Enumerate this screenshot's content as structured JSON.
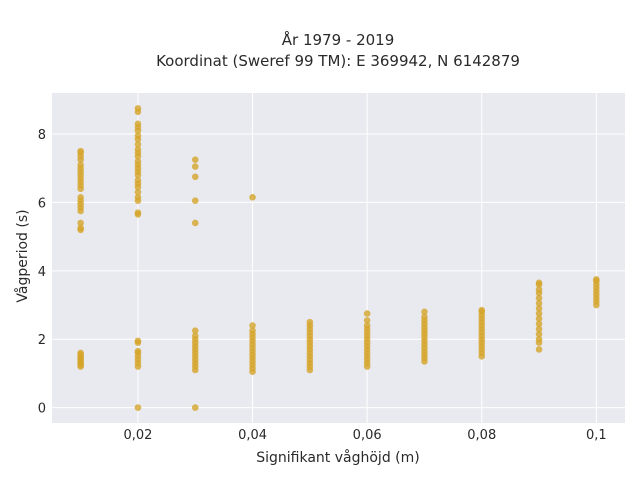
{
  "chart_data": {
    "type": "scatter",
    "title_line1": "År 1979 - 2019",
    "title_line2": "Koordinat (Sweref 99 TM): E 369942, N 6142879",
    "xlabel": "Signifikant våghöjd (m)",
    "ylabel": "Vågperiod (s)",
    "xlim": [
      0.005,
      0.105
    ],
    "ylim": [
      -0.45,
      9.2
    ],
    "x_ticks": [
      {
        "value": 0.02,
        "label": "0,02"
      },
      {
        "value": 0.04,
        "label": "0,04"
      },
      {
        "value": 0.06,
        "label": "0,06"
      },
      {
        "value": 0.08,
        "label": "0,08"
      },
      {
        "value": 0.1,
        "label": "0,1"
      }
    ],
    "y_ticks": [
      {
        "value": 0,
        "label": "0"
      },
      {
        "value": 2,
        "label": "2"
      },
      {
        "value": 4,
        "label": "4"
      },
      {
        "value": 6,
        "label": "6"
      },
      {
        "value": 8,
        "label": "8"
      }
    ],
    "grid": true,
    "colors": {
      "plot_background": "#e9e9f0",
      "grid": "#ffffff",
      "marker": "#d4a52a"
    },
    "series": [
      {
        "x": 0.01,
        "y": [
          1.2,
          1.25,
          1.3,
          1.35,
          1.4,
          1.45,
          1.5,
          1.55,
          1.6,
          5.2,
          5.25,
          5.4,
          5.75,
          5.85,
          5.95,
          6.05,
          6.15,
          6.4,
          6.5,
          6.6,
          6.7,
          6.8,
          6.9,
          7.0,
          7.1,
          7.25,
          7.35,
          7.45,
          7.5
        ]
      },
      {
        "x": 0.02,
        "y": [
          0.0,
          1.2,
          1.3,
          1.4,
          1.5,
          1.6,
          1.65,
          1.9,
          1.95,
          5.65,
          5.7,
          6.05,
          6.15,
          6.3,
          6.45,
          6.55,
          6.65,
          6.8,
          6.9,
          7.0,
          7.1,
          7.2,
          7.35,
          7.45,
          7.55,
          7.7,
          7.85,
          7.95,
          8.1,
          8.2,
          8.3,
          8.65,
          8.75
        ]
      },
      {
        "x": 0.03,
        "y": [
          0.0,
          1.1,
          1.2,
          1.3,
          1.4,
          1.5,
          1.6,
          1.7,
          1.8,
          1.9,
          2.0,
          2.1,
          2.25,
          5.4,
          6.05,
          6.75,
          7.05,
          7.25
        ]
      },
      {
        "x": 0.04,
        "y": [
          1.05,
          1.15,
          1.25,
          1.35,
          1.45,
          1.55,
          1.65,
          1.75,
          1.85,
          1.95,
          2.05,
          2.15,
          2.25,
          2.4,
          6.15
        ]
      },
      {
        "x": 0.05,
        "y": [
          1.1,
          1.2,
          1.3,
          1.4,
          1.5,
          1.6,
          1.7,
          1.8,
          1.9,
          2.0,
          2.1,
          2.2,
          2.3,
          2.4,
          2.5
        ]
      },
      {
        "x": 0.06,
        "y": [
          1.2,
          1.3,
          1.4,
          1.5,
          1.6,
          1.7,
          1.8,
          1.9,
          2.0,
          2.1,
          2.2,
          2.3,
          2.4,
          2.55,
          2.75
        ]
      },
      {
        "x": 0.07,
        "y": [
          1.35,
          1.45,
          1.55,
          1.65,
          1.75,
          1.85,
          1.95,
          2.05,
          2.15,
          2.25,
          2.35,
          2.45,
          2.55,
          2.65,
          2.8
        ]
      },
      {
        "x": 0.08,
        "y": [
          1.5,
          1.6,
          1.7,
          1.8,
          1.9,
          2.0,
          2.1,
          2.2,
          2.3,
          2.4,
          2.5,
          2.6,
          2.7,
          2.8,
          2.85
        ]
      },
      {
        "x": 0.09,
        "y": [
          1.7,
          1.9,
          2.0,
          2.15,
          2.3,
          2.45,
          2.6,
          2.75,
          2.9,
          3.05,
          3.2,
          3.35,
          3.45,
          3.6,
          3.65
        ]
      },
      {
        "x": 0.1,
        "y": [
          3.0,
          3.1,
          3.2,
          3.3,
          3.4,
          3.5,
          3.6,
          3.7,
          3.75
        ]
      }
    ]
  }
}
